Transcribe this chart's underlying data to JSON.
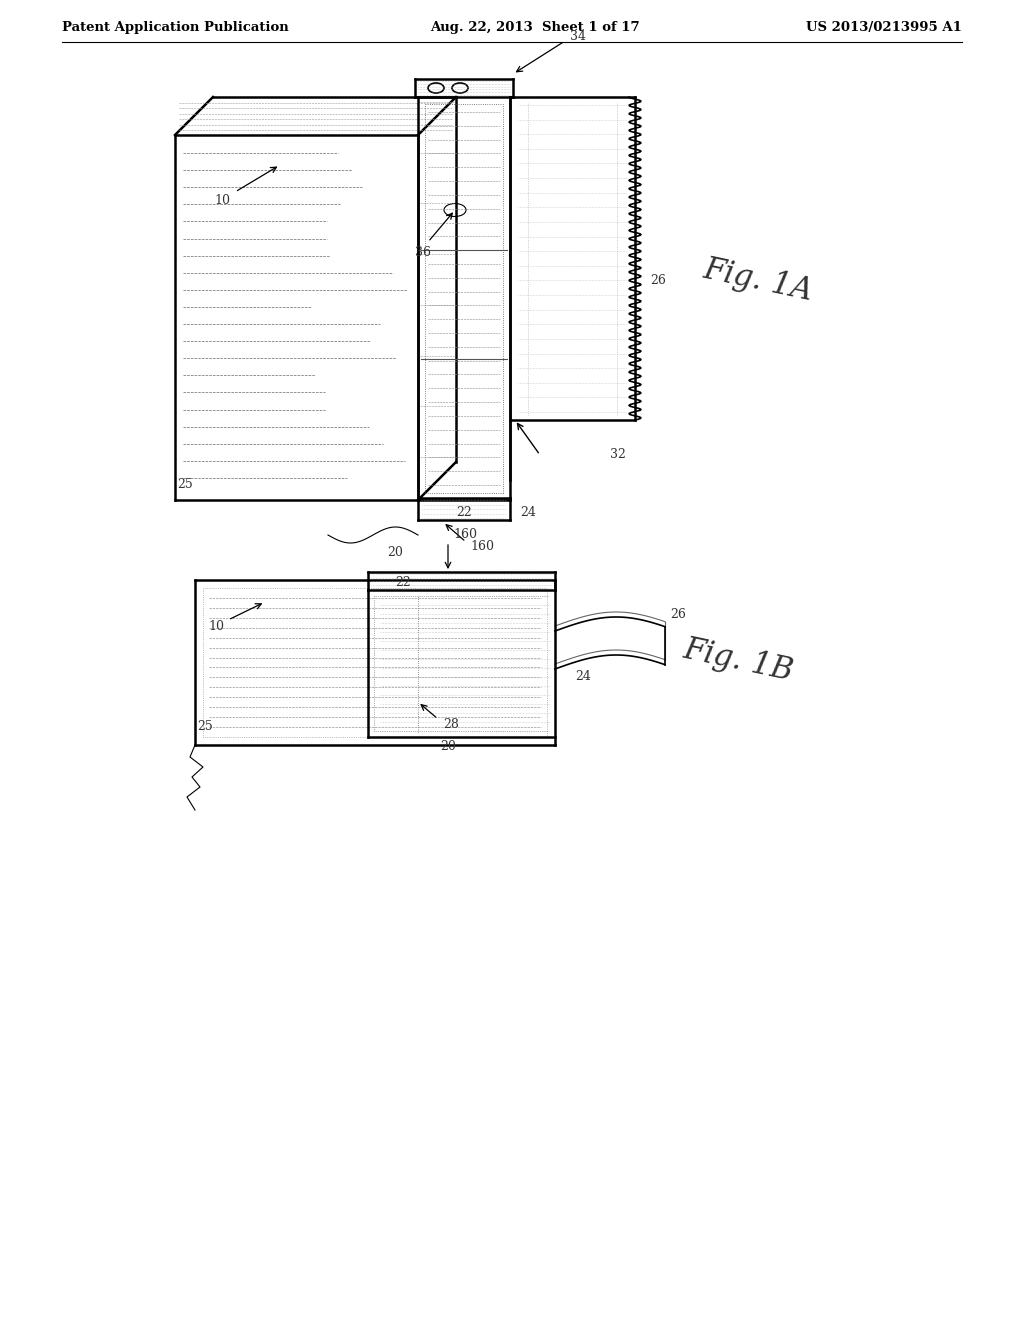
{
  "background_color": "#ffffff",
  "header_left": "Patent Application Publication",
  "header_center": "Aug. 22, 2013  Sheet 1 of 17",
  "header_right": "US 2013/0213995 A1",
  "fig1A_label": "Fig. 1A",
  "fig1B_label": "Fig. 1B",
  "line_color": "#000000"
}
